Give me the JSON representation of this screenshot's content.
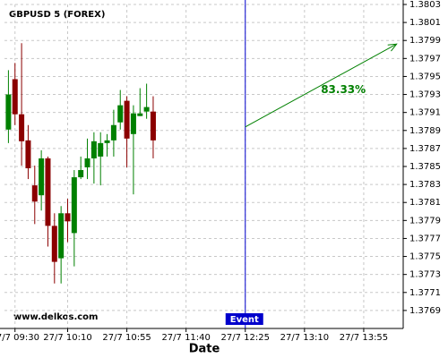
{
  "chart_data": {
    "type": "candlestick",
    "title": "GBPUSD 5 (FOREX)",
    "xlabel": "Date",
    "watermark": "www.delkos.com",
    "x": [
      "27/7 09:25",
      "27/7 09:30",
      "27/7 09:35",
      "27/7 09:40",
      "27/7 09:45",
      "27/7 09:50",
      "27/7 09:55",
      "27/7 10:00",
      "27/7 10:05",
      "27/7 10:10",
      "27/7 10:15",
      "27/7 10:20",
      "27/7 10:25",
      "27/7 10:30",
      "27/7 10:35",
      "27/7 10:40",
      "27/7 10:45",
      "27/7 10:50",
      "27/7 10:55",
      "27/7 11:00",
      "27/7 11:05",
      "27/7 11:10",
      "27/7 11:15"
    ],
    "open": [
      1.37891,
      1.37947,
      1.37908,
      1.37879,
      1.37829,
      1.37818,
      1.37859,
      1.37784,
      1.37748,
      1.37798,
      1.37776,
      1.37838,
      1.37849,
      1.37859,
      1.37861,
      1.37876,
      1.37879,
      1.37899,
      1.37923,
      1.37886,
      1.37906,
      1.37911,
      1.37911
    ],
    "high": [
      1.37957,
      1.37965,
      1.37987,
      1.37896,
      1.37851,
      1.37868,
      1.37861,
      1.37798,
      1.37806,
      1.37814,
      1.37846,
      1.37861,
      1.37881,
      1.37888,
      1.37888,
      1.37886,
      1.37913,
      1.37935,
      1.37928,
      1.37918,
      1.37937,
      1.37942,
      1.37928
    ],
    "low": [
      1.37876,
      1.37896,
      1.37851,
      1.37836,
      1.37786,
      1.37801,
      1.37761,
      1.3772,
      1.3772,
      1.37766,
      1.37739,
      1.37836,
      1.37836,
      1.37831,
      1.37829,
      1.37861,
      1.37861,
      1.37891,
      1.37849,
      1.37819,
      1.37906,
      1.37903,
      1.37859
    ],
    "close": [
      1.3793,
      1.37908,
      1.37878,
      1.37848,
      1.37811,
      1.37859,
      1.37784,
      1.37744,
      1.37798,
      1.37789,
      1.37838,
      1.37846,
      1.37859,
      1.37878,
      1.37876,
      1.37879,
      1.37896,
      1.37918,
      1.37881,
      1.37909,
      1.37909,
      1.37916,
      1.37879
    ],
    "up_color": "#008000",
    "down_color": "#8b0000",
    "xlim": [
      "27/7 09:22",
      "27/7 14:25"
    ],
    "xticks": [
      "27/7 09:30",
      "27/7 10:10",
      "27/7 10:55",
      "27/7 11:40",
      "27/7 12:25",
      "27/7 13:10",
      "27/7 13:55"
    ],
    "ylim": [
      1.3767,
      1.3803
    ],
    "yticks": [
      1.3769,
      1.3771,
      1.3773,
      1.3775,
      1.3777,
      1.3779,
      1.3781,
      1.3783,
      1.3785,
      1.3787,
      1.3789,
      1.3791,
      1.3793,
      1.3795,
      1.3797,
      1.3799,
      1.3801,
      1.3803
    ],
    "grid": true,
    "event": {
      "label": "Event",
      "x": "27/7 12:25",
      "color": "#0000cc"
    },
    "arrow": {
      "x": [
        "27/7 12:25",
        "27/7 14:20"
      ],
      "y": [
        1.37894,
        1.37986
      ],
      "label": "83.33%",
      "color": "#008000"
    }
  }
}
